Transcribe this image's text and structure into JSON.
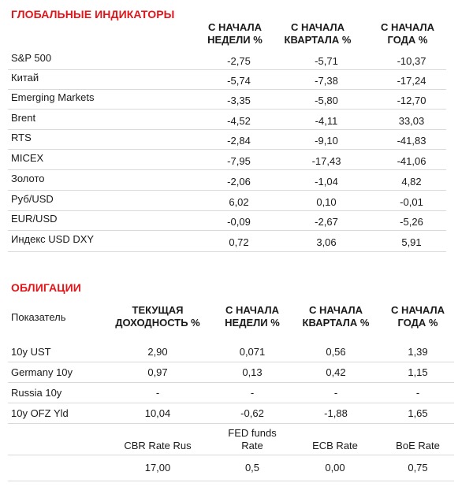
{
  "global": {
    "title": "ГЛОБАЛЬНЫЕ ИНДИКАТОРЫ",
    "columns": [
      {
        "line1": "С НАЧАЛА",
        "line2": "НЕДЕЛИ %"
      },
      {
        "line1": "С НАЧАЛА",
        "line2": "КВАРТАЛА %"
      },
      {
        "line1": "С НАЧАЛА",
        "line2": "ГОДА %"
      }
    ],
    "rows": [
      {
        "label": "S&P 500",
        "week": "-2,75",
        "quarter": "-5,71",
        "year": "-10,37"
      },
      {
        "label": "Китай",
        "week": "-5,74",
        "quarter": "-7,38",
        "year": "-17,24"
      },
      {
        "label": "Emerging Markets",
        "week": "-3,35",
        "quarter": "-5,80",
        "year": "-12,70"
      },
      {
        "label": "Brent",
        "week": "-4,52",
        "quarter": "-4,11",
        "year": "33,03"
      },
      {
        "label": "RTS",
        "week": "-2,84",
        "quarter": "-9,10",
        "year": "-41,83"
      },
      {
        "label": "MICEX",
        "week": "-7,95",
        "quarter": "-17,43",
        "year": "-41,06"
      },
      {
        "label": "Золото",
        "week": "-2,06",
        "quarter": "-1,04",
        "year": "4,82"
      },
      {
        "label": "Руб/USD",
        "week": "6,02",
        "quarter": "0,10",
        "year": "-0,01"
      },
      {
        "label": "EUR/USD",
        "week": "-0,09",
        "quarter": "-2,67",
        "year": "-5,26"
      },
      {
        "label": "Индекс USD DXY",
        "week": "0,72",
        "quarter": "3,06",
        "year": "5,91"
      }
    ]
  },
  "bonds": {
    "title": "ОБЛИГАЦИИ",
    "indicator_label": "Показатель",
    "columns": [
      {
        "line1": "ТЕКУЩАЯ",
        "line2": "ДОХОДНОСТЬ %"
      },
      {
        "line1": "С НАЧАЛА",
        "line2": "НЕДЕЛИ %"
      },
      {
        "line1": "С НАЧАЛА",
        "line2": "КВАРТАЛА %"
      },
      {
        "line1": "С НАЧАЛА",
        "line2": "ГОДА %"
      }
    ],
    "rows": [
      {
        "label": "10y UST",
        "yield": "2,90",
        "week": "0,071",
        "quarter": "0,56",
        "year": "1,39"
      },
      {
        "label": "Germany 10y",
        "yield": "0,97",
        "week": "0,13",
        "quarter": "0,42",
        "year": "1,15"
      },
      {
        "label": "Russia 10y",
        "yield": "-",
        "week": "-",
        "quarter": "-",
        "year": "-"
      },
      {
        "label": "10y OFZ Yld",
        "yield": "10,04",
        "week": "-0,62",
        "quarter": "-1,88",
        "year": "1,65"
      }
    ]
  },
  "rates": {
    "headers": [
      {
        "line1": "",
        "line2": "CBR Rate Rus"
      },
      {
        "line1": "FED funds",
        "line2": "Rate"
      },
      {
        "line1": "",
        "line2": "ECB Rate"
      },
      {
        "line1": "",
        "line2": "BoE Rate"
      }
    ],
    "values": [
      "17,00",
      "0,5",
      "0,00",
      "0,75"
    ]
  },
  "colors": {
    "accent": "#e0161b",
    "divider": "#d9d9d9"
  }
}
